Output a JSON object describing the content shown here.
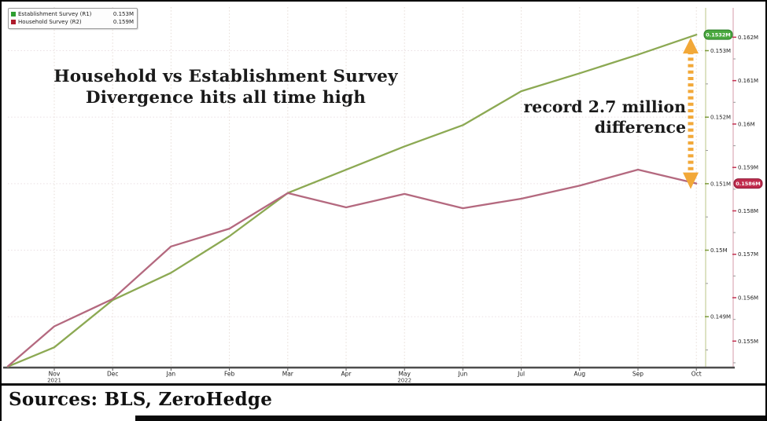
{
  "legend": {
    "items": [
      {
        "name": "Establishment Survey (R1)",
        "value": "0.153M",
        "swatch_color": "#2f9e31"
      },
      {
        "name": "Household Survey (R2)",
        "value": "0.159M",
        "swatch_color": "#ae1c2c"
      }
    ]
  },
  "title": {
    "line1": "Household vs Establishment Survey",
    "line2": "Divergence hits all time high"
  },
  "annotation": {
    "line1": "record 2.7 million",
    "line2": "difference"
  },
  "sources": "Sources: BLS, ZeroHedge",
  "badges": {
    "establishment": {
      "label": "0.1532M",
      "fill": "#49a83e",
      "stroke": "#2f7d2b"
    },
    "household": {
      "label": "0.1586M",
      "fill": "#c02b4d",
      "stroke": "#8d1b38"
    }
  },
  "arrow": {
    "color": "#f2a838",
    "style": "dotted-double-headed-vertical"
  },
  "chart_data": {
    "type": "line",
    "title": "Household vs Establishment Survey Divergence hits all time high",
    "annotation": "record 2.7 million difference",
    "grid": true,
    "legend_position": "top-left",
    "x_labels": [
      "Nov",
      "Dec",
      "Jan",
      "Feb",
      "Mar",
      "Apr",
      "May",
      "Jun",
      "Jul",
      "Aug",
      "Sep",
      "Oct"
    ],
    "x_year_labels": [
      {
        "index": 0,
        "year": "2021"
      },
      {
        "index": 6,
        "year": "2022"
      }
    ],
    "series": [
      {
        "name": "Establishment Survey",
        "axis": "r1",
        "color": "#8ca953",
        "start_value": 148.25,
        "values": [
          148.54,
          149.25,
          149.66,
          150.21,
          150.86,
          151.21,
          151.56,
          151.88,
          152.39,
          152.66,
          152.94,
          153.24
        ]
      },
      {
        "name": "Household Survey",
        "axis": "r2",
        "color": "#b4697f",
        "start_value": 154.42,
        "values": [
          155.34,
          155.97,
          157.18,
          157.59,
          158.41,
          158.08,
          158.39,
          158.06,
          158.28,
          158.58,
          158.95,
          158.63
        ]
      }
    ],
    "r1_axis": {
      "side": "right-inner",
      "unit": "millions of jobs",
      "ylim": [
        148.235,
        153.62
      ],
      "major_ticks": [
        {
          "value": 153,
          "label": "0.153M"
        },
        {
          "value": 152,
          "label": "0.152M"
        },
        {
          "value": 151,
          "label": "0.151M"
        },
        {
          "value": 150,
          "label": "0.15M"
        },
        {
          "value": 149,
          "label": "0.149M"
        }
      ]
    },
    "r2_axis": {
      "side": "right-outer",
      "unit": "millions of jobs",
      "ylim": [
        154.39,
        162.64
      ],
      "major_ticks": [
        {
          "value": 162,
          "label": "0.162M"
        },
        {
          "value": 161,
          "label": "0.161M"
        },
        {
          "value": 160,
          "label": "0.16M"
        },
        {
          "value": 159,
          "label": "0.159M"
        },
        {
          "value": 158,
          "label": "0.158M"
        },
        {
          "value": 157,
          "label": "0.157M"
        },
        {
          "value": 156,
          "label": "0.156M"
        },
        {
          "value": 155,
          "label": "0.155M"
        }
      ]
    }
  }
}
